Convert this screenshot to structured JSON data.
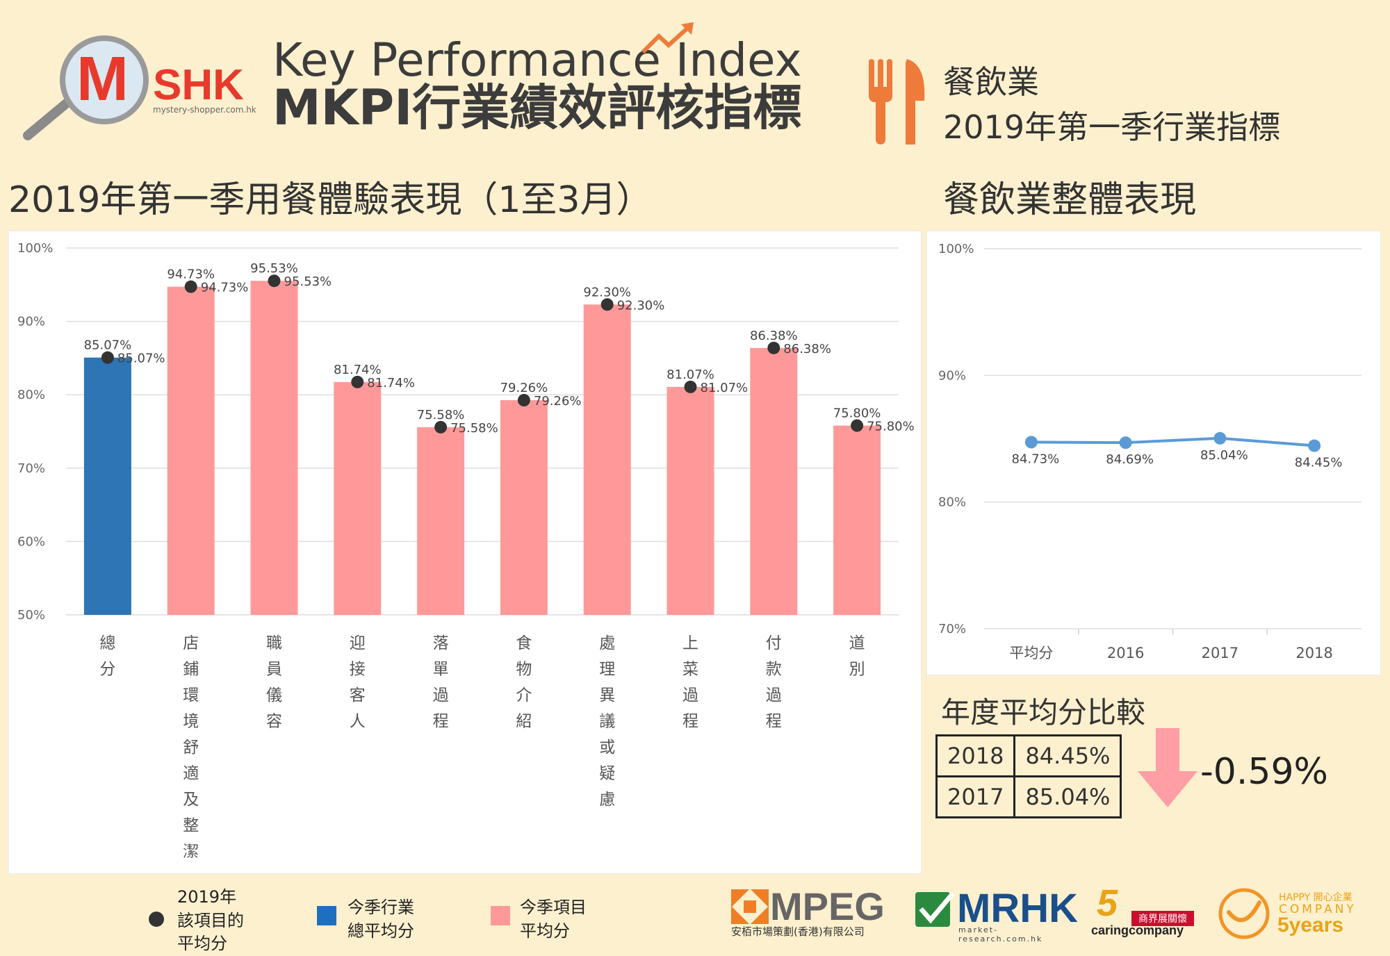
{
  "header": {
    "logo_m": "M",
    "logo_shk": "SHK",
    "logo_url": "mystery-shopper.com.hk",
    "title_line1": "Key Performance Index",
    "title_line2": "MKPI行業績效評核指標",
    "industry": "餐飲業",
    "industry_period": "2019年第一季行業指標"
  },
  "colors": {
    "background": "#fdf0cf",
    "industry_bar": "#2e75b6",
    "item_bar": "#ff9999",
    "dot": "#333333",
    "line": "#5b9bd5",
    "down_arrow": "#ff9ea4",
    "fork_icon": "#ee7b3a"
  },
  "left_section": {
    "title": "2019年第一季用餐體驗表現（1至3月）"
  },
  "right_section": {
    "title": "餐飲業整體表現"
  },
  "chart_data": [
    {
      "type": "bar",
      "title": "",
      "ylim": [
        50,
        100
      ],
      "y_ticks": [
        "100%",
        "90%",
        "80%",
        "70%",
        "60%",
        "50%"
      ],
      "categories": [
        "總分",
        "店鋪環境舒適及整潔",
        "職員儀容",
        "迎接客人",
        "落單過程",
        "食物介紹",
        "處理異議或疑慮",
        "上菜過程",
        "付款過程",
        "道別"
      ],
      "series": [
        {
          "name": "今季行業總平均分",
          "values": [
            85.07,
            null,
            null,
            null,
            null,
            null,
            null,
            null,
            null,
            null
          ]
        },
        {
          "name": "今季項目平均分",
          "values": [
            null,
            94.73,
            95.53,
            81.74,
            75.58,
            79.26,
            92.3,
            81.07,
            86.38,
            75.8
          ]
        },
        {
          "name": "2019年該項目的平均分",
          "values": [
            85.07,
            94.73,
            95.53,
            81.74,
            75.58,
            79.26,
            92.3,
            81.07,
            86.38,
            75.8
          ]
        }
      ],
      "bar_labels": [
        "85.07%",
        "94.73%",
        "95.53%",
        "81.74%",
        "75.58%",
        "79.26%",
        "92.30%",
        "81.07%",
        "86.38%",
        "75.80%"
      ],
      "dot_labels": [
        "85.07%",
        "94.73%",
        "95.53%",
        "81.74%",
        "75.58%",
        "79.26%",
        "92.30%",
        "81.07%",
        "86.38%",
        "75.80%"
      ],
      "grid": true,
      "legend": "bottom"
    },
    {
      "type": "line",
      "title": "",
      "ylim": [
        70,
        100
      ],
      "y_ticks": [
        "100%",
        "90%",
        "80%",
        "70%"
      ],
      "categories": [
        "平均分",
        "2016",
        "2017",
        "2018"
      ],
      "values": [
        84.73,
        84.69,
        85.04,
        84.45
      ],
      "labels": [
        "84.73%",
        "84.69%",
        "85.04%",
        "84.45%"
      ],
      "grid": true
    }
  ],
  "comparison": {
    "title": "年度平均分比較",
    "rows": [
      {
        "year": "2018",
        "value": "84.45%"
      },
      {
        "year": "2017",
        "value": "85.04%"
      }
    ],
    "change": "-0.59%"
  },
  "legend": {
    "dot": "2019年\n該項目的\n平均分",
    "blue": "今季行業\n總平均分",
    "pink": "今季項目\n平均分"
  },
  "footer_logos": {
    "mpeg": "MPEG",
    "mpeg_sub": "安栢市場策劃(香港)有限公司",
    "mrhk": "MRHK",
    "mrhk_sub": "market-research.com.hk",
    "caring": "caringcompany",
    "caring_badge": "商界展關懷",
    "caring_years": "5",
    "happy": "HAPPY 開心企業",
    "happy_company": "COMPANY",
    "happy_years": "5years"
  }
}
